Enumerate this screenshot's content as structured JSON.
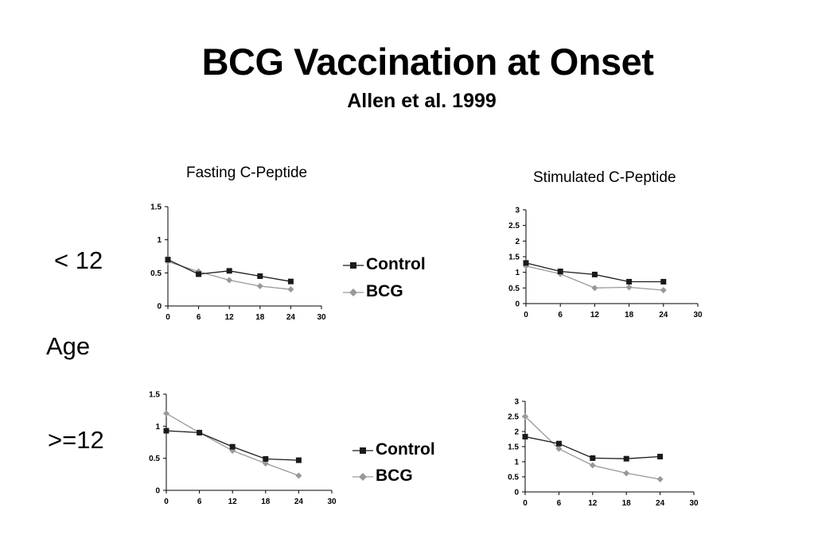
{
  "slide": {
    "title": "BCG Vaccination at Onset",
    "subtitle": "Allen et al. 1999",
    "column_headers": [
      "Fasting C-Peptide",
      "Stimulated C-Peptide"
    ],
    "row_labels": {
      "young": "< 12",
      "axis": "Age",
      "old": ">=12"
    }
  },
  "legend": {
    "control": "Control",
    "bcg": "BCG"
  },
  "colors": {
    "control": "#1a1a1a",
    "bcg": "#999999"
  },
  "chart_data": [
    {
      "type": "line",
      "panel": "fasting-under-12",
      "title": "Fasting C-Peptide",
      "x_ticks": [
        "0",
        "6",
        "12",
        "18",
        "24",
        "30"
      ],
      "xlim": [
        0,
        30
      ],
      "y_ticks": [
        "0",
        "0.5",
        "1",
        "1.5"
      ],
      "ylim": [
        0,
        1.5
      ],
      "x": [
        0,
        6,
        12,
        18,
        24
      ],
      "series": [
        {
          "name": "Control",
          "values": [
            0.7,
            0.48,
            0.53,
            0.45,
            0.37
          ]
        },
        {
          "name": "BCG",
          "values": [
            0.67,
            0.52,
            0.39,
            0.3,
            0.25
          ]
        }
      ]
    },
    {
      "type": "line",
      "panel": "stimulated-under-12",
      "title": "Stimulated C-Peptide",
      "x_ticks": [
        "0",
        "6",
        "12",
        "18",
        "24",
        "30"
      ],
      "xlim": [
        0,
        30
      ],
      "y_ticks": [
        "0",
        "0.5",
        "1",
        "1.5",
        "2",
        "2.5",
        "3"
      ],
      "ylim": [
        0,
        3
      ],
      "x": [
        0,
        6,
        12,
        18,
        24
      ],
      "series": [
        {
          "name": "Control",
          "values": [
            1.3,
            1.03,
            0.93,
            0.7,
            0.7
          ]
        },
        {
          "name": "BCG",
          "values": [
            1.2,
            0.95,
            0.5,
            0.52,
            0.43
          ]
        }
      ]
    },
    {
      "type": "line",
      "panel": "fasting-12-plus",
      "x_ticks": [
        "0",
        "6",
        "12",
        "18",
        "24",
        "30"
      ],
      "xlim": [
        0,
        30
      ],
      "y_ticks": [
        "0",
        "0.5",
        "1",
        "1.5"
      ],
      "ylim": [
        0,
        1.5
      ],
      "x": [
        0,
        6,
        12,
        18,
        24
      ],
      "series": [
        {
          "name": "Control",
          "values": [
            0.93,
            0.9,
            0.68,
            0.49,
            0.47
          ]
        },
        {
          "name": "BCG",
          "values": [
            1.2,
            0.9,
            0.62,
            0.42,
            0.23
          ]
        }
      ]
    },
    {
      "type": "line",
      "panel": "stimulated-12-plus",
      "x_ticks": [
        "0",
        "6",
        "12",
        "18",
        "24",
        "30"
      ],
      "xlim": [
        0,
        30
      ],
      "y_ticks": [
        "0",
        "0.5",
        "1",
        "1.5",
        "2",
        "2.5",
        "3"
      ],
      "ylim": [
        0,
        3
      ],
      "x": [
        0,
        6,
        12,
        18,
        24
      ],
      "series": [
        {
          "name": "Control",
          "values": [
            1.83,
            1.6,
            1.12,
            1.1,
            1.17
          ]
        },
        {
          "name": "BCG",
          "values": [
            2.5,
            1.43,
            0.88,
            0.62,
            0.42
          ]
        }
      ]
    }
  ]
}
